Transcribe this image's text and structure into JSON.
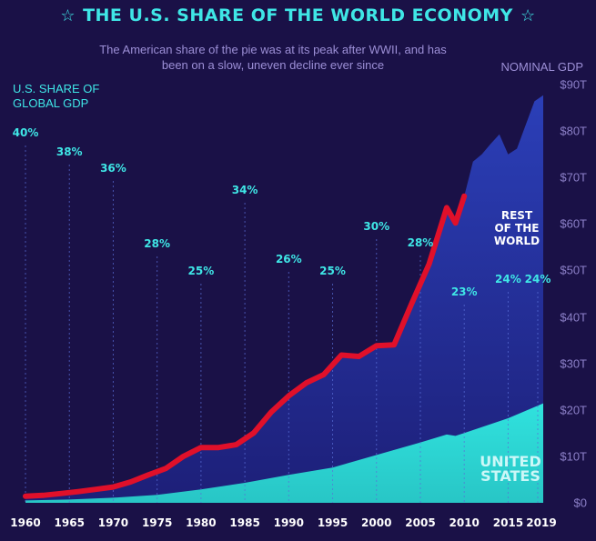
{
  "header": {
    "title": "THE U.S. SHARE OF THE WORLD ECONOMY",
    "star": "☆",
    "subtitle": "The American share of the pie was at its peak after WWII, and has been on a slow, uneven decline ever since"
  },
  "labels": {
    "left_axis": "U.S. SHARE OF\nGLOBAL GDP",
    "right_axis": "NOMINAL GDP",
    "rest_of_world": "REST\nOF THE\nWORLD",
    "united_states": "UNITED\nSTATES"
  },
  "colors": {
    "background": "#1a1147",
    "accent_cyan": "#3fe6e6",
    "us_area": "#2ee0dc",
    "world_area_top": "#2b3fb8",
    "world_area_bottom": "#1d1f78",
    "us_peak_line": "#e0102a"
  },
  "chart_data": {
    "type": "area",
    "x_ticks": [
      "1960",
      "1965",
      "1970",
      "1975",
      "1980",
      "1985",
      "1990",
      "1995",
      "2000",
      "2005",
      "2010",
      "2015",
      "2019"
    ],
    "y_ticks": [
      "$0",
      "$10T",
      "$20T",
      "$30T",
      "$40T",
      "$50T",
      "$60T",
      "$70T",
      "$80T",
      "$90T"
    ],
    "ylim": [
      0,
      90
    ],
    "xlim": [
      1960,
      2019
    ],
    "share_annotations": [
      {
        "year": 1960,
        "label": "40%",
        "value": 40
      },
      {
        "year": 1965,
        "label": "38%",
        "value": 38
      },
      {
        "year": 1970,
        "label": "36%",
        "value": 36
      },
      {
        "year": 1975,
        "label": "28%",
        "value": 28
      },
      {
        "year": 1980,
        "label": "25%",
        "value": 25
      },
      {
        "year": 1985,
        "label": "34%",
        "value": 34
      },
      {
        "year": 1990,
        "label": "26%",
        "value": 26
      },
      {
        "year": 1995,
        "label": "25%",
        "value": 25
      },
      {
        "year": 2000,
        "label": "30%",
        "value": 30
      },
      {
        "year": 2005,
        "label": "28%",
        "value": 28
      },
      {
        "year": 2010,
        "label": "23%",
        "value": 23
      },
      {
        "year": 2015,
        "label": "24%",
        "value": 24
      },
      {
        "year": 2019,
        "label": "24%",
        "value": 24
      }
    ],
    "series": [
      {
        "name": "REST OF THE WORLD",
        "x": [
          1960,
          1962,
          1964,
          1966,
          1968,
          1970,
          1972,
          1974,
          1976,
          1978,
          1980,
          1982,
          1984,
          1986,
          1988,
          1990,
          1992,
          1994,
          1996,
          1998,
          2000,
          2002,
          2004,
          2006,
          2008,
          2009,
          2010,
          2011,
          2012,
          2013,
          2014,
          2015,
          2016,
          2017,
          2018,
          2019
        ],
        "values": [
          1.4,
          1.6,
          2.0,
          2.4,
          2.9,
          3.4,
          4.5,
          6.0,
          7.4,
          10.0,
          11.9,
          11.9,
          12.5,
          15.0,
          19.5,
          23.0,
          25.8,
          27.6,
          31.8,
          31.5,
          33.8,
          34.0,
          42.8,
          51.4,
          63.5,
          60.2,
          66.0,
          73.4,
          75.0,
          77.2,
          79.3,
          75.0,
          76.2,
          81.3,
          86.4,
          87.7
        ]
      },
      {
        "name": "UNITED STATES",
        "x": [
          1960,
          1965,
          1970,
          1975,
          1980,
          1985,
          1990,
          1995,
          2000,
          2005,
          2008,
          2009,
          2010,
          2015,
          2019
        ],
        "values": [
          0.5,
          0.7,
          1.1,
          1.7,
          2.9,
          4.3,
          6.0,
          7.6,
          10.3,
          13.0,
          14.7,
          14.4,
          15.0,
          18.2,
          21.4
        ]
      }
    ]
  }
}
